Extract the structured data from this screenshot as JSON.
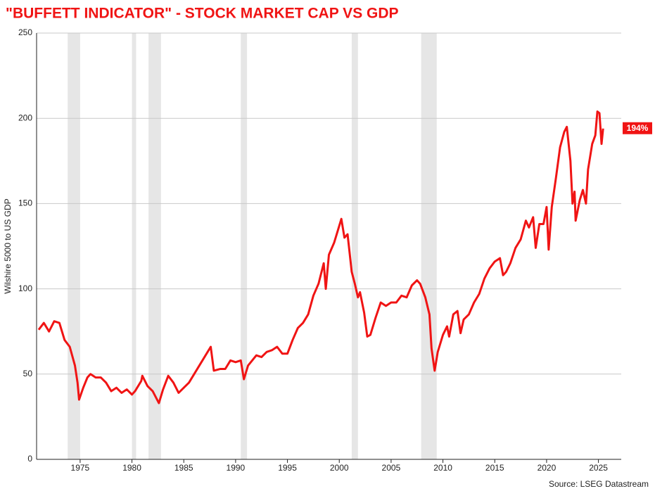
{
  "chart_data": {
    "type": "line",
    "title": "\"BUFFETT INDICATOR\" - STOCK MARKET CAP VS GDP",
    "y_label": "Wilshire 5000 to US GDP",
    "source": "Source: LSEG Datastream",
    "x": [
      1971.0,
      1971.5,
      1972.0,
      1972.5,
      1973.0,
      1973.5,
      1974.0,
      1974.5,
      1974.75,
      1974.9,
      1975.3,
      1975.7,
      1976.0,
      1976.5,
      1977.0,
      1977.5,
      1978.0,
      1978.5,
      1979.0,
      1979.5,
      1980.0,
      1980.3,
      1980.9,
      1981.0,
      1981.5,
      1982.0,
      1982.6,
      1983.0,
      1983.5,
      1984.0,
      1984.5,
      1985.0,
      1985.5,
      1986.0,
      1986.5,
      1987.0,
      1987.6,
      1987.9,
      1988.5,
      1989.0,
      1989.5,
      1990.0,
      1990.5,
      1990.8,
      1991.2,
      1991.6,
      1992.0,
      1992.5,
      1993.0,
      1993.5,
      1994.0,
      1994.5,
      1995.0,
      1995.5,
      1996.0,
      1996.5,
      1997.0,
      1997.5,
      1998.0,
      1998.5,
      1998.7,
      1999.0,
      1999.5,
      1999.9,
      2000.2,
      2000.5,
      2000.8,
      2001.2,
      2001.5,
      2001.8,
      2002.0,
      2002.4,
      2002.7,
      2003.0,
      2003.5,
      2004.0,
      2004.5,
      2005.0,
      2005.5,
      2006.0,
      2006.5,
      2007.0,
      2007.5,
      2007.8,
      2008.3,
      2008.7,
      2008.9,
      2009.2,
      2009.5,
      2010.0,
      2010.4,
      2010.6,
      2011.0,
      2011.4,
      2011.7,
      2012.0,
      2012.5,
      2013.0,
      2013.5,
      2014.0,
      2014.5,
      2015.0,
      2015.5,
      2015.8,
      2016.1,
      2016.5,
      2017.0,
      2017.5,
      2018.0,
      2018.3,
      2018.7,
      2018.95,
      2019.3,
      2019.7,
      2020.0,
      2020.2,
      2020.5,
      2020.9,
      2021.3,
      2021.7,
      2021.95,
      2022.3,
      2022.5,
      2022.7,
      2022.8,
      2023.2,
      2023.5,
      2023.8,
      2024.0,
      2024.4,
      2024.7,
      2024.9,
      2025.1,
      2025.3,
      2025.45
    ],
    "series": [
      {
        "color": "#f01414",
        "values": [
          76,
          80,
          75,
          81,
          80,
          70,
          66,
          55,
          45,
          35,
          42,
          48,
          50,
          48,
          48,
          45,
          40,
          42,
          39,
          41,
          38,
          40,
          46,
          49,
          43,
          40,
          33,
          41,
          49,
          45,
          39,
          42,
          45,
          50,
          55,
          60,
          66,
          52,
          53,
          53,
          58,
          57,
          58,
          47,
          55,
          58,
          61,
          60,
          63,
          64,
          66,
          62,
          62,
          70,
          77,
          80,
          85,
          96,
          103,
          115,
          100,
          120,
          127,
          135,
          141,
          130,
          132,
          110,
          103,
          95,
          98,
          86,
          72,
          73,
          83,
          92,
          90,
          92,
          92,
          96,
          95,
          102,
          105,
          103,
          95,
          85,
          65,
          52,
          63,
          73,
          78,
          72,
          85,
          87,
          74,
          82,
          85,
          92,
          97,
          106,
          112,
          116,
          118,
          108,
          110,
          115,
          124,
          129,
          140,
          136,
          142,
          124,
          138,
          138,
          148,
          123,
          148,
          165,
          183,
          192,
          195,
          175,
          150,
          157,
          140,
          152,
          158,
          150,
          170,
          185,
          190,
          204,
          203,
          185,
          194
        ]
      }
    ],
    "end_label": {
      "value": 194,
      "label": "194%"
    },
    "recessions": [
      [
        1973.8,
        1975.0
      ],
      [
        1980.0,
        1980.4
      ],
      [
        1981.6,
        1982.8
      ],
      [
        1990.5,
        1991.1
      ],
      [
        2001.2,
        2001.8
      ],
      [
        2007.9,
        2009.4
      ]
    ],
    "xlim": [
      1970.8,
      2027.2
    ],
    "ylim": [
      0,
      250
    ],
    "xticks": [
      1975,
      1980,
      1985,
      1990,
      1995,
      2000,
      2005,
      2010,
      2015,
      2020,
      2025
    ],
    "yticks": [
      0,
      50,
      100,
      150,
      200,
      250
    ],
    "grid": true
  }
}
